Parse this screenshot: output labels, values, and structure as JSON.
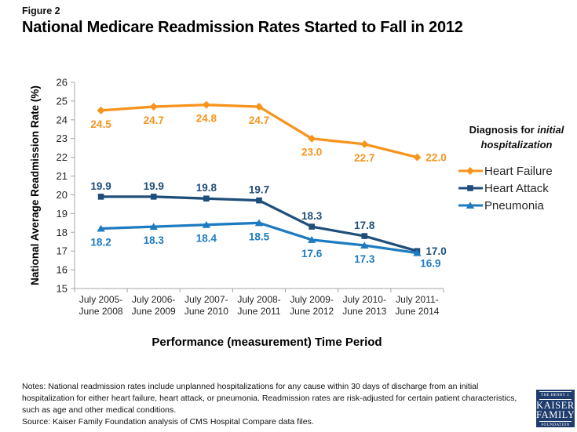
{
  "figure": {
    "label": "Figure 2",
    "title": "National Medicare Readmission Rates Started to Fall in 2012"
  },
  "chart_data": {
    "type": "line",
    "title": "National Medicare Readmission Rates Started to Fall in 2012",
    "xlabel": "Performance (measurement) Time Period",
    "ylabel": "National Average Readmission Rate (%)",
    "ylim": [
      15,
      26
    ],
    "ytick_step": 1,
    "grid": false,
    "value_decimals": 1,
    "categories": [
      [
        "July 2005-",
        "June 2008"
      ],
      [
        "July 2006-",
        "June 2009"
      ],
      [
        "July 2007-",
        "June 2010"
      ],
      [
        "July 2008-",
        "June 2011"
      ],
      [
        "July 2009-",
        "June 2012"
      ],
      [
        "July 2010-",
        "June 2013"
      ],
      [
        "July 2011-",
        "June 2014"
      ]
    ],
    "series": [
      {
        "name": "Heart Failure",
        "color": "#F7941E",
        "marker": "diamond",
        "values": [
          24.5,
          24.7,
          24.8,
          24.7,
          23.0,
          22.7,
          22.0
        ],
        "label_side": "below",
        "last_label_side": "right"
      },
      {
        "name": "Heart Attack",
        "color": "#1F4E79",
        "marker": "square",
        "values": [
          19.9,
          19.9,
          19.8,
          19.7,
          18.3,
          17.8,
          17.0
        ],
        "label_side": "above",
        "last_label_side": "right"
      },
      {
        "name": "Pneumonia",
        "color": "#1F7BC0",
        "marker": "triangle",
        "values": [
          18.2,
          18.3,
          18.4,
          18.5,
          17.6,
          17.3,
          16.9
        ],
        "label_side": "below",
        "last_label_side": "below-right"
      }
    ],
    "legend": {
      "position": "right",
      "title_normal": "Diagnosis for ",
      "title_italic": "initial hospitalization"
    },
    "axis_color": "#A6A6A6",
    "tick_label_color": "#262626"
  },
  "notes": {
    "notes_text": "Notes: National readmission rates include unplanned hospitalizations for any cause within 30 days of discharge from an initial hospitalization for either heart failure, heart attack, or pneumonia. Readmission rates are risk-adjusted for certain  patient characteristics, such as age and other medical conditions.",
    "source_text": "Source: Kaiser Family Foundation analysis of CMS Hospital Compare data files."
  },
  "logo": {
    "line1": "THE HENRY J.",
    "line2": "KAISER",
    "line3": "FAMILY",
    "line4": "FOUNDATION"
  }
}
